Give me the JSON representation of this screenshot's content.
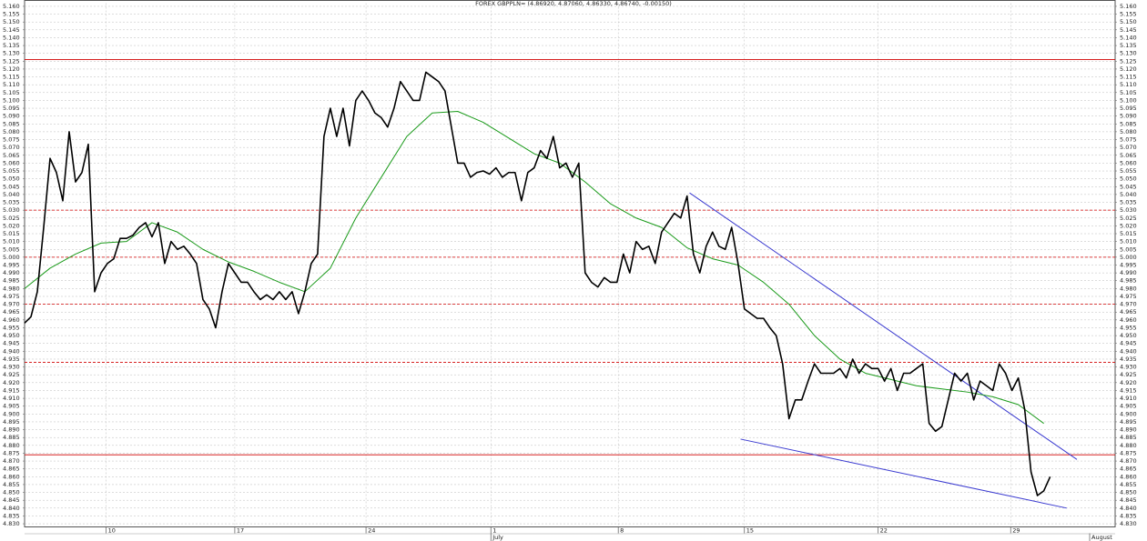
{
  "chart_data": {
    "type": "line",
    "title": "FOREX GBPPLN= (4.86920, 4.87060, 4.86330, 4.86740, -0.00150)",
    "xlim": [
      0,
      42.8
    ],
    "ylim": [
      4.828,
      5.162
    ],
    "grid": true,
    "xticks": [
      {
        "value": 3.2,
        "label": "10"
      },
      {
        "value": 8.25,
        "label": "17"
      },
      {
        "value": 13.4,
        "label": "24"
      },
      {
        "value": 18.3,
        "label": "1"
      },
      {
        "value": 23.3,
        "label": "8"
      },
      {
        "value": 28.25,
        "label": "15"
      },
      {
        "value": 33.5,
        "label": "22"
      },
      {
        "value": 38.7,
        "label": "29"
      }
    ],
    "month_ticks": [
      {
        "value": 18.3,
        "label": "July"
      },
      {
        "value": 41.8,
        "label": "August"
      }
    ],
    "yticks": [
      {
        "value": 4.83,
        "label": "4.830"
      },
      {
        "value": 4.835,
        "label": "4.835"
      },
      {
        "value": 4.84,
        "label": "4.840"
      },
      {
        "value": 4.845,
        "label": "4.845"
      },
      {
        "value": 4.85,
        "label": "4.850"
      },
      {
        "value": 4.855,
        "label": "4.855"
      },
      {
        "value": 4.86,
        "label": "4.860"
      },
      {
        "value": 4.865,
        "label": "4.865"
      },
      {
        "value": 4.87,
        "label": "4.870"
      },
      {
        "value": 4.875,
        "label": "4.875"
      },
      {
        "value": 4.88,
        "label": "4.880"
      },
      {
        "value": 4.885,
        "label": "4.885"
      },
      {
        "value": 4.89,
        "label": "4.890"
      },
      {
        "value": 4.895,
        "label": "4.895"
      },
      {
        "value": 4.9,
        "label": "4.900"
      },
      {
        "value": 4.905,
        "label": "4.905"
      },
      {
        "value": 4.91,
        "label": "4.910"
      },
      {
        "value": 4.915,
        "label": "4.915"
      },
      {
        "value": 4.92,
        "label": "4.920"
      },
      {
        "value": 4.925,
        "label": "4.925"
      },
      {
        "value": 4.93,
        "label": "4.930"
      },
      {
        "value": 4.935,
        "label": "4.935"
      },
      {
        "value": 4.94,
        "label": "4.940"
      },
      {
        "value": 4.945,
        "label": "4.945"
      },
      {
        "value": 4.95,
        "label": "4.950"
      },
      {
        "value": 4.955,
        "label": "4.955"
      },
      {
        "value": 4.96,
        "label": "4.960"
      },
      {
        "value": 4.965,
        "label": "4.965"
      },
      {
        "value": 4.97,
        "label": "4.970"
      },
      {
        "value": 4.975,
        "label": "4.975"
      },
      {
        "value": 4.98,
        "label": "4.980"
      },
      {
        "value": 4.985,
        "label": "4.985"
      },
      {
        "value": 4.99,
        "label": "4.990"
      },
      {
        "value": 4.995,
        "label": "4.995"
      },
      {
        "value": 5.0,
        "label": "5.000"
      },
      {
        "value": 5.005,
        "label": "5.005"
      },
      {
        "value": 5.01,
        "label": "5.010"
      },
      {
        "value": 5.015,
        "label": "5.015"
      },
      {
        "value": 5.02,
        "label": "5.020"
      },
      {
        "value": 5.025,
        "label": "5.025"
      },
      {
        "value": 5.03,
        "label": "5.030"
      },
      {
        "value": 5.035,
        "label": "5.035"
      },
      {
        "value": 5.04,
        "label": "5.040"
      },
      {
        "value": 5.045,
        "label": "5.045"
      },
      {
        "value": 5.05,
        "label": "5.050"
      },
      {
        "value": 5.055,
        "label": "5.055"
      },
      {
        "value": 5.06,
        "label": "5.060"
      },
      {
        "value": 5.065,
        "label": "5.065"
      },
      {
        "value": 5.07,
        "label": "5.070"
      },
      {
        "value": 5.075,
        "label": "5.075"
      },
      {
        "value": 5.08,
        "label": "5.080"
      },
      {
        "value": 5.085,
        "label": "5.085"
      },
      {
        "value": 5.09,
        "label": "5.090"
      },
      {
        "value": 5.095,
        "label": "5.095"
      },
      {
        "value": 5.1,
        "label": "5.100"
      },
      {
        "value": 5.105,
        "label": "5.105"
      },
      {
        "value": 5.11,
        "label": "5.110"
      },
      {
        "value": 5.115,
        "label": "5.115"
      },
      {
        "value": 5.12,
        "label": "5.120"
      },
      {
        "value": 5.125,
        "label": "5.125"
      },
      {
        "value": 5.13,
        "label": "5.130"
      },
      {
        "value": 5.135,
        "label": "5.135"
      },
      {
        "value": 5.14,
        "label": "5.140"
      },
      {
        "value": 5.145,
        "label": "5.145"
      },
      {
        "value": 5.15,
        "label": "5.150"
      },
      {
        "value": 5.155,
        "label": "5.155"
      },
      {
        "value": 5.16,
        "label": "5.160"
      }
    ],
    "series": [
      {
        "color": "#000000",
        "width": 1.6,
        "x": [
          0,
          0.25,
          0.5,
          0.75,
          1,
          1.25,
          1.5,
          1.75,
          2,
          2.25,
          2.5,
          2.75,
          3,
          3.25,
          3.5,
          3.75,
          4,
          4.25,
          4.5,
          4.75,
          5,
          5.25,
          5.5,
          5.75,
          6,
          6.25,
          6.5,
          6.75,
          7,
          7.25,
          7.5,
          7.75,
          8,
          8.25,
          8.5,
          8.75,
          9,
          9.25,
          9.5,
          9.75,
          10,
          10.25,
          10.5,
          10.75,
          11,
          11.25,
          11.5,
          11.75,
          12,
          12.25,
          12.5,
          12.75,
          13,
          13.25,
          13.5,
          13.75,
          14,
          14.25,
          14.5,
          14.75,
          15,
          15.25,
          15.5,
          15.75,
          16,
          16.25,
          16.5,
          16.75,
          17,
          17.25,
          17.5,
          17.75,
          18,
          18.25,
          18.5,
          18.75,
          19,
          19.25,
          19.5,
          19.75,
          20,
          20.25,
          20.5,
          20.75,
          21,
          21.25,
          21.5,
          21.75,
          22,
          22.25,
          22.5,
          22.75,
          23,
          23.25,
          23.5,
          23.75,
          24,
          24.25,
          24.5,
          24.75,
          25,
          25.25,
          25.5,
          25.75,
          26,
          26.25,
          26.5,
          26.75,
          27,
          27.25,
          27.5,
          27.75,
          28,
          28.25,
          28.5,
          28.75,
          29,
          29.25,
          29.5,
          29.75,
          30,
          30.25,
          30.5,
          30.75,
          31,
          31.25,
          31.5,
          31.75,
          32,
          32.25,
          32.5,
          32.75,
          33,
          33.25,
          33.5,
          33.75,
          34,
          34.25,
          34.5,
          34.75,
          35,
          35.25,
          35.5,
          35.75,
          36,
          36.25,
          36.5,
          36.75,
          37,
          37.25,
          37.5,
          37.75,
          38,
          38.25,
          38.5,
          38.75,
          39,
          39.25,
          39.5,
          39.75,
          40,
          40.25
        ],
        "values": [
          4.958,
          4.962,
          4.978,
          5.019,
          5.063,
          5.054,
          5.036,
          5.08,
          5.048,
          5.054,
          5.072,
          4.978,
          4.99,
          4.996,
          4.999,
          5.012,
          5.012,
          5.014,
          5.019,
          5.022,
          5.013,
          5.022,
          4.996,
          5.01,
          5.005,
          5.007,
          5.002,
          4.996,
          4.973,
          4.967,
          4.955,
          4.978,
          4.996,
          4.99,
          4.984,
          4.984,
          4.978,
          4.973,
          4.976,
          4.973,
          4.978,
          4.973,
          4.978,
          4.964,
          4.978,
          4.996,
          5.002,
          5.077,
          5.095,
          5.077,
          5.095,
          5.071,
          5.1,
          5.106,
          5.1,
          5.092,
          5.089,
          5.083,
          5.095,
          5.112,
          5.106,
          5.1,
          5.1,
          5.118,
          5.115,
          5.112,
          5.106,
          5.083,
          5.06,
          5.06,
          5.051,
          5.054,
          5.055,
          5.053,
          5.057,
          5.051,
          5.054,
          5.054,
          5.036,
          5.054,
          5.057,
          5.068,
          5.063,
          5.077,
          5.057,
          5.06,
          5.051,
          5.06,
          4.99,
          4.984,
          4.981,
          4.987,
          4.984,
          4.984,
          5.002,
          4.99,
          5.01,
          5.005,
          5.007,
          4.996,
          5.016,
          5.022,
          5.028,
          5.025,
          5.039,
          5.002,
          4.99,
          5.007,
          5.016,
          5.007,
          5.005,
          5.019,
          4.996,
          4.967,
          4.964,
          4.961,
          4.961,
          4.955,
          4.95,
          4.932,
          4.897,
          4.909,
          4.909,
          4.921,
          4.932,
          4.926,
          4.926,
          4.926,
          4.929,
          4.923,
          4.935,
          4.926,
          4.932,
          4.929,
          4.929,
          4.921,
          4.929,
          4.915,
          4.926,
          4.926,
          4.929,
          4.932,
          4.894,
          4.889,
          4.892,
          4.909,
          4.926,
          4.921,
          4.926,
          4.909,
          4.921,
          4.918,
          4.915,
          4.932,
          4.926,
          4.915,
          4.923,
          4.903,
          4.863,
          4.848,
          4.851,
          4.86
        ]
      },
      {
        "color": "#1a9a1a",
        "width": 1,
        "x": [
          0,
          1,
          2,
          3,
          4,
          5,
          6,
          7,
          8,
          9,
          10,
          11,
          12,
          13,
          14,
          15,
          16,
          17,
          18,
          19,
          20,
          21,
          22,
          23,
          24,
          25,
          26,
          27,
          28,
          29,
          30,
          31,
          32,
          33,
          34,
          35,
          36,
          37,
          38,
          39,
          40
        ],
        "values": [
          4.98,
          4.993,
          5.002,
          5.009,
          5.01,
          5.022,
          5.016,
          5.005,
          4.997,
          4.991,
          4.984,
          4.978,
          4.993,
          5.025,
          5.051,
          5.077,
          5.092,
          5.093,
          5.086,
          5.076,
          5.066,
          5.06,
          5.048,
          5.034,
          5.025,
          5.019,
          5.006,
          4.999,
          4.995,
          4.984,
          4.97,
          4.95,
          4.935,
          4.926,
          4.922,
          4.918,
          4.916,
          4.914,
          4.911,
          4.906,
          4.894
        ]
      }
    ],
    "levels": [
      {
        "value": 5.126,
        "color": "#d00000",
        "style": "solid"
      },
      {
        "value": 5.03,
        "color": "#d00000",
        "style": "dashed"
      },
      {
        "value": 5.0,
        "color": "#d00000",
        "style": "dashed"
      },
      {
        "value": 4.97,
        "color": "#d00000",
        "style": "dashed"
      },
      {
        "value": 4.933,
        "color": "#d00000",
        "style": "dashed"
      },
      {
        "value": 4.874,
        "color": "#d00000",
        "style": "solid"
      }
    ],
    "trendlines": [
      {
        "color": "#3a3ad0",
        "x": [
          26.1,
          41.3
        ],
        "values": [
          5.041,
          4.871
        ]
      },
      {
        "color": "#3a3ad0",
        "x": [
          28.1,
          40.9
        ],
        "values": [
          4.884,
          4.84
        ]
      }
    ]
  }
}
